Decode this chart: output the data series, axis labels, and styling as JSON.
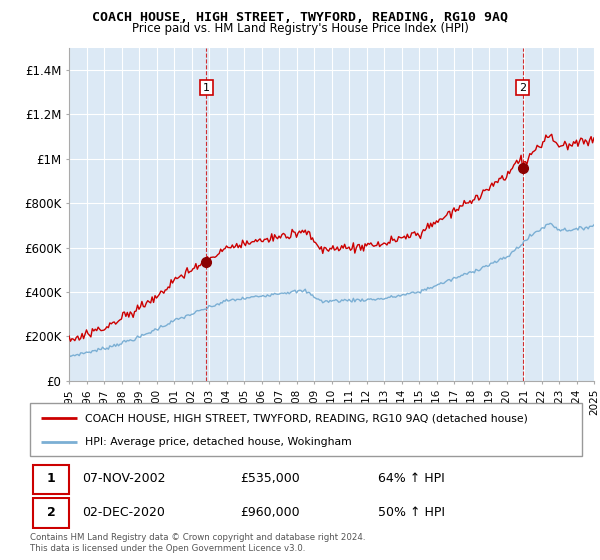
{
  "title": "COACH HOUSE, HIGH STREET, TWYFORD, READING, RG10 9AQ",
  "subtitle": "Price paid vs. HM Land Registry's House Price Index (HPI)",
  "property_label": "COACH HOUSE, HIGH STREET, TWYFORD, READING, RG10 9AQ (detached house)",
  "hpi_label": "HPI: Average price, detached house, Wokingham",
  "sale1_date": "07-NOV-2002",
  "sale1_price": 535000,
  "sale1_hpi": "64% ↑ HPI",
  "sale2_date": "02-DEC-2020",
  "sale2_price": 960000,
  "sale2_hpi": "50% ↑ HPI",
  "footer": "Contains HM Land Registry data © Crown copyright and database right 2024.\nThis data is licensed under the Open Government Licence v3.0.",
  "property_color": "#cc0000",
  "hpi_color": "#7bafd4",
  "plot_bg": "#dce9f5",
  "ylim": [
    0,
    1500000
  ],
  "yticks": [
    0,
    200000,
    400000,
    600000,
    800000,
    1000000,
    1200000,
    1400000
  ],
  "ytick_labels": [
    "£0",
    "£200K",
    "£400K",
    "£600K",
    "£800K",
    "£1M",
    "£1.2M",
    "£1.4M"
  ],
  "xstart": 1995,
  "xend": 2025,
  "sale1_x": 2002.85,
  "sale2_x": 2020.92
}
